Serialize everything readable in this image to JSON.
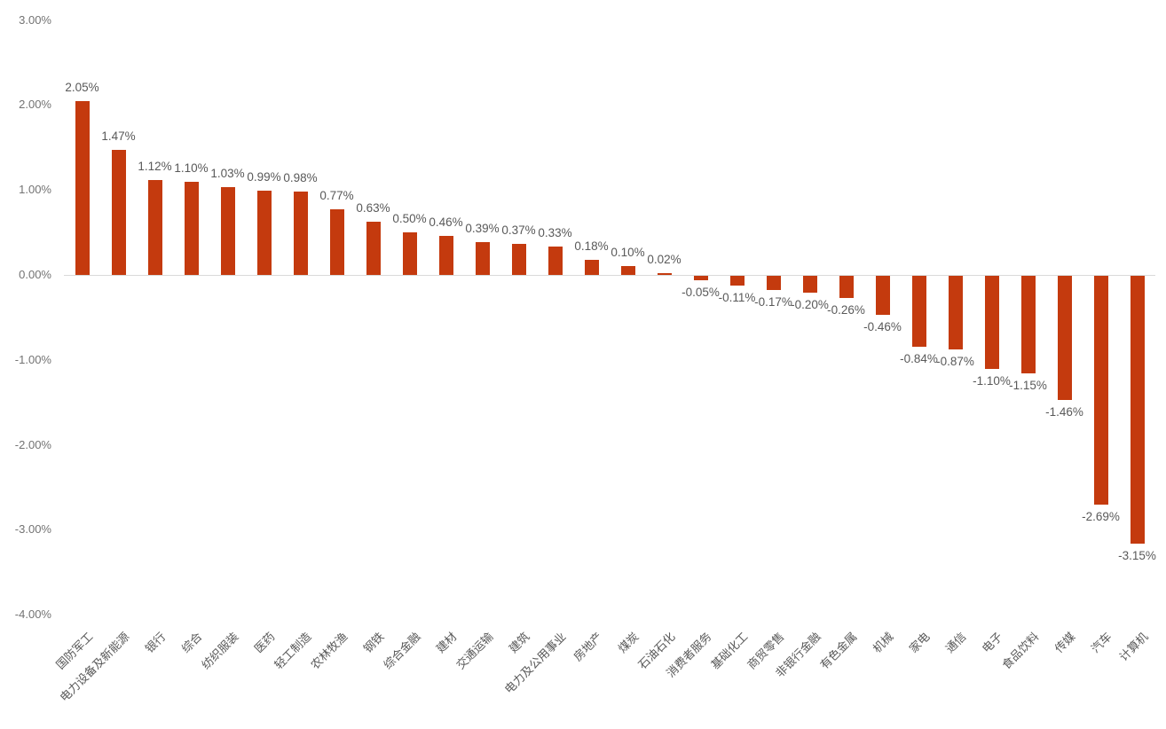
{
  "chart_data": {
    "type": "bar",
    "title": "",
    "xlabel": "",
    "ylabel": "",
    "categories": [
      "国防军工",
      "电力设备及新能源",
      "银行",
      "综合",
      "纺织服装",
      "医药",
      "轻工制造",
      "农林牧渔",
      "钢铁",
      "综合金融",
      "建材",
      "交通运输",
      "建筑",
      "电力及公用事业",
      "房地产",
      "煤炭",
      "石油石化",
      "消费者服务",
      "基础化工",
      "商贸零售",
      "非银行金融",
      "有色金属",
      "机械",
      "家电",
      "通信",
      "电子",
      "食品饮料",
      "传媒",
      "汽车",
      "计算机"
    ],
    "values": [
      2.05,
      1.47,
      1.12,
      1.1,
      1.03,
      0.99,
      0.98,
      0.77,
      0.63,
      0.5,
      0.46,
      0.39,
      0.37,
      0.33,
      0.18,
      0.1,
      0.02,
      -0.05,
      -0.11,
      -0.17,
      -0.2,
      -0.26,
      -0.46,
      -0.84,
      -0.87,
      -1.1,
      -1.15,
      -1.46,
      -2.69,
      -3.15
    ],
    "value_labels": [
      "2.05%",
      "1.47%",
      "1.12%",
      "1.10%",
      "1.03%",
      "0.99%",
      "0.98%",
      "0.77%",
      "0.63%",
      "0.50%",
      "0.46%",
      "0.39%",
      "0.37%",
      "0.33%",
      "0.18%",
      "0.10%",
      "0.02%",
      "-0.05%",
      "-0.11%",
      "-0.17%",
      "-0.20%",
      "-0.26%",
      "-0.46%",
      "-0.84%",
      "-0.87%",
      "-1.10%",
      "-1.15%",
      "-1.46%",
      "-2.69%",
      "-3.15%"
    ],
    "y_axis": {
      "ticks": [
        "3.00%",
        "2.00%",
        "1.00%",
        "0.00%",
        "-1.00%",
        "-2.00%",
        "-3.00%",
        "-4.00%"
      ],
      "tick_values": [
        3,
        2,
        1,
        0,
        -1,
        -2,
        -3,
        -4
      ],
      "ylim": [
        -4,
        3
      ]
    },
    "legend": null,
    "grid": false,
    "colors": {
      "bar": "#C43A0E",
      "axis_line": "#D9D9D9",
      "tick_text": "#737373",
      "label_text": "#595959"
    }
  }
}
